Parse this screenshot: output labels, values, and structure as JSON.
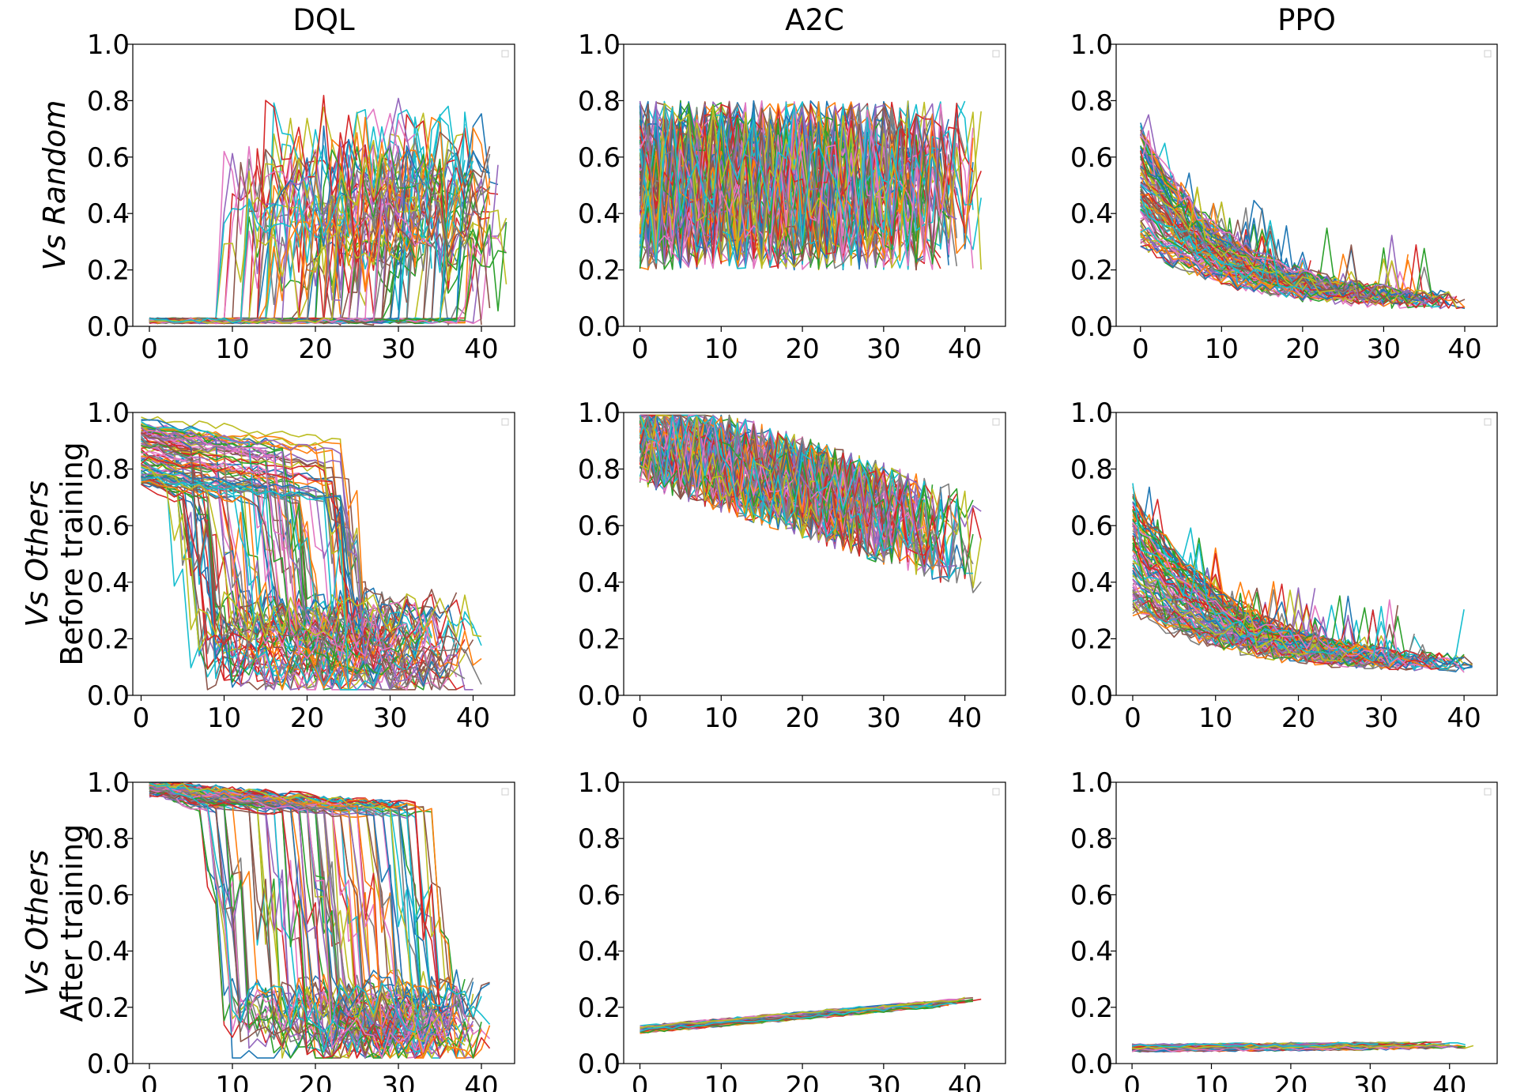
{
  "figure": {
    "columns": [
      "DQL",
      "A2C",
      "PPO"
    ],
    "rows": [
      {
        "lines": [
          {
            "text": "Vs Random",
            "italic": true
          }
        ]
      },
      {
        "lines": [
          {
            "text": "Vs Others",
            "italic": true
          },
          {
            "text": "Before training",
            "italic": false
          }
        ]
      },
      {
        "lines": [
          {
            "text": "Vs Others",
            "italic": true
          },
          {
            "text": "After training",
            "italic": false
          }
        ]
      }
    ]
  },
  "colors": [
    "#1f77b4",
    "#ff7f0e",
    "#2ca02c",
    "#d62728",
    "#9467bd",
    "#8c564b",
    "#e377c2",
    "#7f7f7f",
    "#bcbd22",
    "#17becf"
  ],
  "chart_data": [
    {
      "type": "line",
      "row": 0,
      "col": 0,
      "title": "DQL",
      "xlim": [
        -2,
        44
      ],
      "ylim": [
        0.0,
        1.0
      ],
      "xticks": [
        0,
        10,
        20,
        30,
        40
      ],
      "yticks": [
        0.0,
        0.2,
        0.4,
        0.6,
        0.8,
        1.0
      ],
      "legend": "top-right (empty)",
      "n_series": 100,
      "pattern": "rise",
      "params": {
        "low": 0.02,
        "high_min": 0.3,
        "high_max": 0.83,
        "switch_min": 9,
        "switch_max": 41,
        "len_min": 18,
        "len_max": 43,
        "noise": 0.02
      }
    },
    {
      "type": "line",
      "row": 0,
      "col": 1,
      "title": "A2C",
      "xlim": [
        -2,
        45
      ],
      "ylim": [
        0.0,
        1.0
      ],
      "xticks": [
        0,
        10,
        20,
        30,
        40
      ],
      "yticks": [
        0.0,
        0.2,
        0.4,
        0.6,
        0.8,
        1.0
      ],
      "legend": "top-right (empty)",
      "n_series": 100,
      "pattern": "noisy",
      "params": {
        "mean_start": 0.5,
        "mean_end": 0.5,
        "amp": 0.3,
        "min": 0.05,
        "max": 0.93,
        "len_min": 22,
        "len_max": 43
      }
    },
    {
      "type": "line",
      "row": 0,
      "col": 2,
      "title": "PPO",
      "xlim": [
        -3,
        44
      ],
      "ylim": [
        0.0,
        1.0
      ],
      "xticks": [
        0,
        10,
        20,
        30,
        40
      ],
      "yticks": [
        0.0,
        0.2,
        0.4,
        0.6,
        0.8,
        1.0
      ],
      "legend": "top-right (empty)",
      "n_series": 100,
      "pattern": "decay",
      "params": {
        "start_min": 0.3,
        "start_max": 0.7,
        "end": 0.08,
        "tau": 11,
        "noise": 0.06,
        "spike": 0.2,
        "len_min": 20,
        "len_max": 42
      }
    },
    {
      "type": "line",
      "row": 1,
      "col": 0,
      "title": "",
      "xlim": [
        -1,
        45
      ],
      "ylim": [
        0.0,
        1.0
      ],
      "xticks": [
        0,
        10,
        20,
        30,
        40
      ],
      "yticks": [
        0.0,
        0.2,
        0.4,
        0.6,
        0.8,
        1.0
      ],
      "legend": "top-right (empty)",
      "n_series": 100,
      "pattern": "drop",
      "params": {
        "high_min": 0.75,
        "high_max": 0.98,
        "low_min": 0.05,
        "low_max": 0.3,
        "switch_min": 4,
        "switch_max": 26,
        "len_min": 22,
        "len_max": 43,
        "noise": 0.03
      }
    },
    {
      "type": "line",
      "row": 1,
      "col": 1,
      "title": "",
      "xlim": [
        -2,
        45
      ],
      "ylim": [
        0.0,
        1.0
      ],
      "xticks": [
        0,
        10,
        20,
        30,
        40
      ],
      "yticks": [
        0.0,
        0.2,
        0.4,
        0.6,
        0.8,
        1.0
      ],
      "legend": "top-right (empty)",
      "n_series": 100,
      "pattern": "noisy",
      "params": {
        "mean_start": 0.92,
        "mean_end": 0.55,
        "amp": 0.18,
        "min": 0.07,
        "max": 0.99,
        "len_min": 22,
        "len_max": 43
      }
    },
    {
      "type": "line",
      "row": 1,
      "col": 2,
      "title": "",
      "xlim": [
        -2,
        44
      ],
      "ylim": [
        0.0,
        1.0
      ],
      "xticks": [
        0,
        10,
        20,
        30,
        40
      ],
      "yticks": [
        0.0,
        0.2,
        0.4,
        0.6,
        0.8,
        1.0
      ],
      "legend": "top-right (empty)",
      "n_series": 100,
      "pattern": "decay",
      "params": {
        "start_min": 0.3,
        "start_max": 0.72,
        "end": 0.1,
        "tau": 12,
        "noise": 0.06,
        "spike": 0.2,
        "len_min": 22,
        "len_max": 43
      }
    },
    {
      "type": "line",
      "row": 2,
      "col": 0,
      "title": "",
      "xlim": [
        -2,
        44
      ],
      "ylim": [
        0.0,
        1.0
      ],
      "xticks": [
        0,
        10,
        20,
        30,
        40
      ],
      "yticks": [
        0.0,
        0.2,
        0.4,
        0.6,
        0.8,
        1.0
      ],
      "legend": "top-right (empty)",
      "n_series": 100,
      "pattern": "drop",
      "params": {
        "high_min": 0.96,
        "high_max": 1.0,
        "low_min": 0.05,
        "low_max": 0.25,
        "switch_min": 6,
        "switch_max": 35,
        "len_min": 28,
        "len_max": 42,
        "noise": 0.03
      }
    },
    {
      "type": "line",
      "row": 2,
      "col": 1,
      "title": "",
      "xlim": [
        -2,
        45
      ],
      "ylim": [
        0.0,
        1.0
      ],
      "xticks": [
        0,
        10,
        20,
        30,
        40
      ],
      "yticks": [
        0.0,
        0.2,
        0.4,
        0.6,
        0.8,
        1.0
      ],
      "legend": "top-right (empty)",
      "n_series": 80,
      "pattern": "flat",
      "params": {
        "start": 0.12,
        "end": 0.23,
        "noise": 0.012,
        "len_min": 20,
        "len_max": 43
      }
    },
    {
      "type": "line",
      "row": 2,
      "col": 2,
      "title": "",
      "xlim": [
        -2,
        46
      ],
      "ylim": [
        0.0,
        1.0
      ],
      "xticks": [
        0,
        10,
        20,
        30,
        40
      ],
      "yticks": [
        0.0,
        0.2,
        0.4,
        0.6,
        0.8,
        1.0
      ],
      "legend": "top-right (empty)",
      "n_series": 80,
      "pattern": "flat",
      "params": {
        "start": 0.055,
        "end": 0.065,
        "noise": 0.012,
        "len_min": 25,
        "len_max": 44
      }
    }
  ]
}
